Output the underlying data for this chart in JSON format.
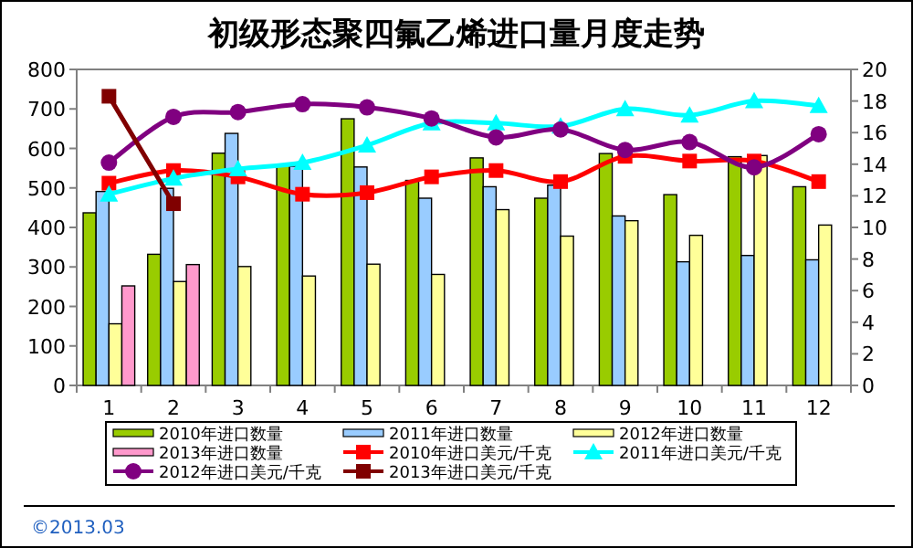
{
  "chart_data": {
    "type": "bar",
    "title": "初级形态聚四氟乙烯进口量月度走势",
    "categories": [
      "1",
      "2",
      "3",
      "4",
      "5",
      "6",
      "7",
      "8",
      "9",
      "10",
      "11",
      "12"
    ],
    "series": [
      {
        "name": "2010年进口数量",
        "color": "#99cc00",
        "values": [
          437,
          332,
          588,
          560,
          675,
          519,
          576,
          474,
          587,
          483,
          579,
          503
        ]
      },
      {
        "name": "2011年进口数量",
        "color": "#99ccff",
        "values": [
          491,
          499,
          638,
          555,
          553,
          474,
          503,
          507,
          429,
          313,
          329,
          318
        ]
      },
      {
        "name": "2012年进口数量",
        "color": "#ffff99",
        "values": [
          156,
          263,
          301,
          277,
          307,
          281,
          445,
          378,
          417,
          380,
          582,
          406
        ]
      },
      {
        "name": "2013年进口数量",
        "color": "#ff99cc",
        "values": [
          252,
          306,
          null,
          null,
          null,
          null,
          null,
          null,
          null,
          null,
          null,
          null
        ]
      },
      {
        "name": "2010年进口美元/千克",
        "type": "line",
        "axis": "y2",
        "marker": "square",
        "color": "#ff0000",
        "values": [
          12.8,
          13.6,
          13.2,
          12.1,
          12.2,
          13.2,
          13.6,
          12.9,
          14.5,
          14.2,
          14.2,
          12.9
        ]
      },
      {
        "name": "2011年进口美元/千克",
        "type": "line",
        "axis": "y2",
        "marker": "triangle",
        "color": "#00ffff",
        "values": [
          12.1,
          13.1,
          13.7,
          14.1,
          15.2,
          16.6,
          16.6,
          16.4,
          17.5,
          17.1,
          18.0,
          17.7
        ]
      },
      {
        "name": "2012年进口美元/千克",
        "type": "line",
        "axis": "y2",
        "marker": "circle",
        "color": "#800080",
        "values": [
          14.1,
          17.0,
          17.3,
          17.8,
          17.6,
          16.9,
          15.7,
          16.2,
          14.9,
          15.4,
          13.8,
          15.9
        ]
      },
      {
        "name": "2013年进口美元/千克",
        "type": "line",
        "axis": "y2",
        "marker": "square",
        "color": "#800000",
        "values": [
          18.3,
          11.5,
          null,
          null,
          null,
          null,
          null,
          null,
          null,
          null,
          null,
          null
        ]
      }
    ],
    "ylim": [
      0,
      800
    ],
    "yticks": [
      0,
      100,
      200,
      300,
      400,
      500,
      600,
      700,
      800
    ],
    "y2lim": [
      0,
      20
    ],
    "y2ticks": [
      0,
      2,
      4,
      6,
      8,
      10,
      12,
      14,
      16,
      18,
      20
    ],
    "legend": "bottom",
    "annotations": [
      "©2013.03"
    ]
  }
}
